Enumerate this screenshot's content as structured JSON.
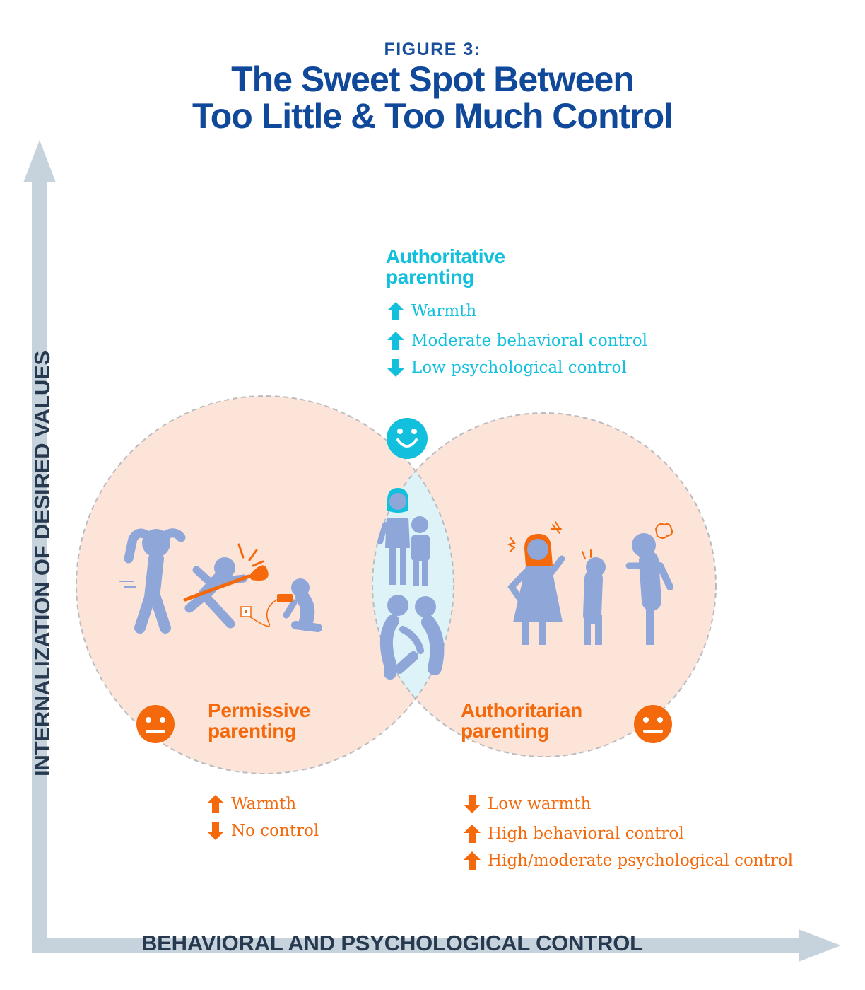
{
  "header": {
    "figure_label": "FIGURE 3:",
    "title_line1": "The Sweet Spot Between",
    "title_line2": "Too Little & Too Much Control"
  },
  "axes": {
    "y_label": "INTERNALIZATION OF DESIRED VALUES",
    "x_label": "BEHAVIORAL AND PSYCHOLOGICAL CONTROL"
  },
  "colors": {
    "title": "#11499a",
    "axis": "#c7d3dc",
    "teal": "#12c0dd",
    "orange": "#f4690c",
    "circle_fill": "#fde4d8",
    "overlap_fill": "#ddf3f7",
    "figures": "#8fa6d8"
  },
  "authoritative": {
    "heading_line1": "Authoritative",
    "heading_line2": "parenting",
    "face": "smiling-face-icon",
    "items": [
      {
        "arrow": "up",
        "text": "Warmth"
      },
      {
        "arrow": "up",
        "text": "Moderate behavioral control"
      },
      {
        "arrow": "down",
        "text": "Low psychological control"
      }
    ]
  },
  "permissive": {
    "heading_line1": "Permissive",
    "heading_line2": "parenting",
    "face": "neutral-face-icon",
    "items": [
      {
        "arrow": "up",
        "text": "Warmth"
      },
      {
        "arrow": "down",
        "text": "No control"
      }
    ]
  },
  "authoritarian": {
    "heading_line1": "Authoritarian",
    "heading_line2": "parenting",
    "face": "neutral-face-icon",
    "items": [
      {
        "arrow": "down",
        "text": "Low warmth"
      },
      {
        "arrow": "up",
        "text": "High behavioral control"
      },
      {
        "arrow": "up",
        "text": "High/moderate psychological control"
      }
    ]
  }
}
